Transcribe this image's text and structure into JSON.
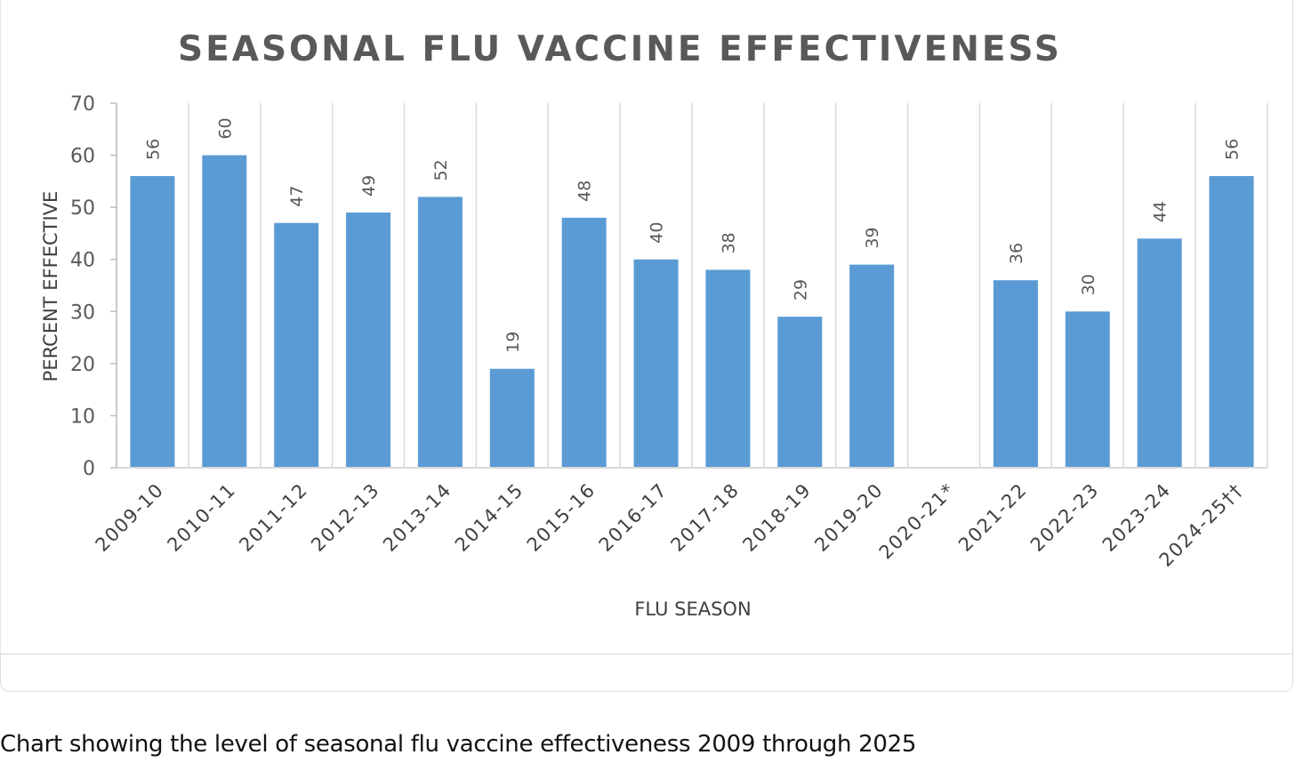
{
  "caption": "Chart showing the level of seasonal flu vaccine effectiveness 2009 through 2025",
  "chart_data": {
    "type": "bar",
    "title": "SEASONAL FLU VACCINE EFFECTIVENESS",
    "xlabel": "FLU SEASON",
    "ylabel": "PERCENT EFFECTIVE",
    "ylim": [
      0,
      70
    ],
    "yticks": [
      "0",
      "10",
      "20",
      "30",
      "40",
      "50",
      "60",
      "70"
    ],
    "grid": "vertical",
    "categories": [
      "2009-10",
      "2010-11",
      "2011-12",
      "2012-13",
      "2013-14",
      "2014-15",
      "2015-16",
      "2016-17",
      "2017-18",
      "2018-19",
      "2019-20",
      "2020-21*",
      "2021-22",
      "2022-23",
      "2023-24",
      "2024-25††"
    ],
    "values": [
      56,
      60,
      47,
      49,
      52,
      19,
      48,
      40,
      38,
      29,
      39,
      null,
      36,
      30,
      44,
      56
    ],
    "data_labels": [
      "56",
      "60",
      "47",
      "49",
      "52",
      "19",
      "48",
      "40",
      "38",
      "29",
      "39",
      "",
      "36",
      "30",
      "44",
      "56"
    ],
    "bar_color": "#5b9bd5"
  }
}
